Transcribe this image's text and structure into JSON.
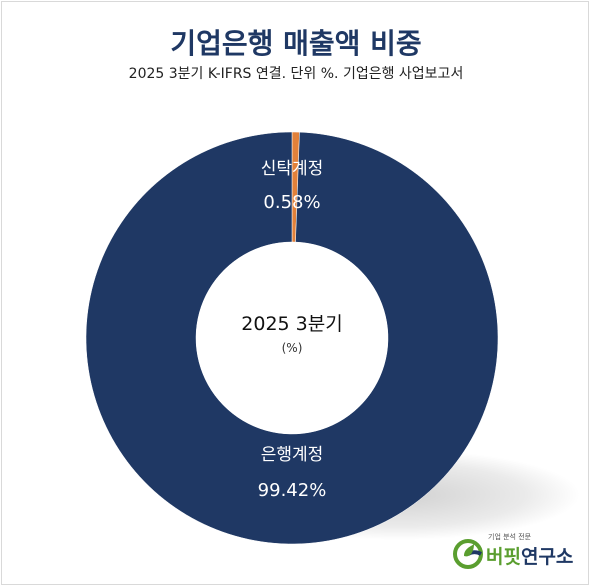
{
  "chart_data": {
    "type": "pie",
    "title": "기업은행 매출액 비중",
    "subtitle": "2025 3분기 K-IFRS 연결. 단위 %. 기업은행 사업보고서",
    "center_label": "2025 3분기",
    "center_unit": "(%)",
    "slices": [
      {
        "label": "신탁계정",
        "value": 0.58,
        "value_text": "0.58%",
        "color": "#e2813a"
      },
      {
        "label": "은행계정",
        "value": 99.42,
        "value_text": "99.42%",
        "color": "#1f3864"
      }
    ]
  },
  "logo": {
    "tagline": "기업 분석 전문",
    "name_part1": "버핏",
    "name_part2": "연구소",
    "icon": "leaf-circle-logo-icon",
    "colors": {
      "green": "#5a9e2f",
      "navy": "#1f3864"
    }
  }
}
